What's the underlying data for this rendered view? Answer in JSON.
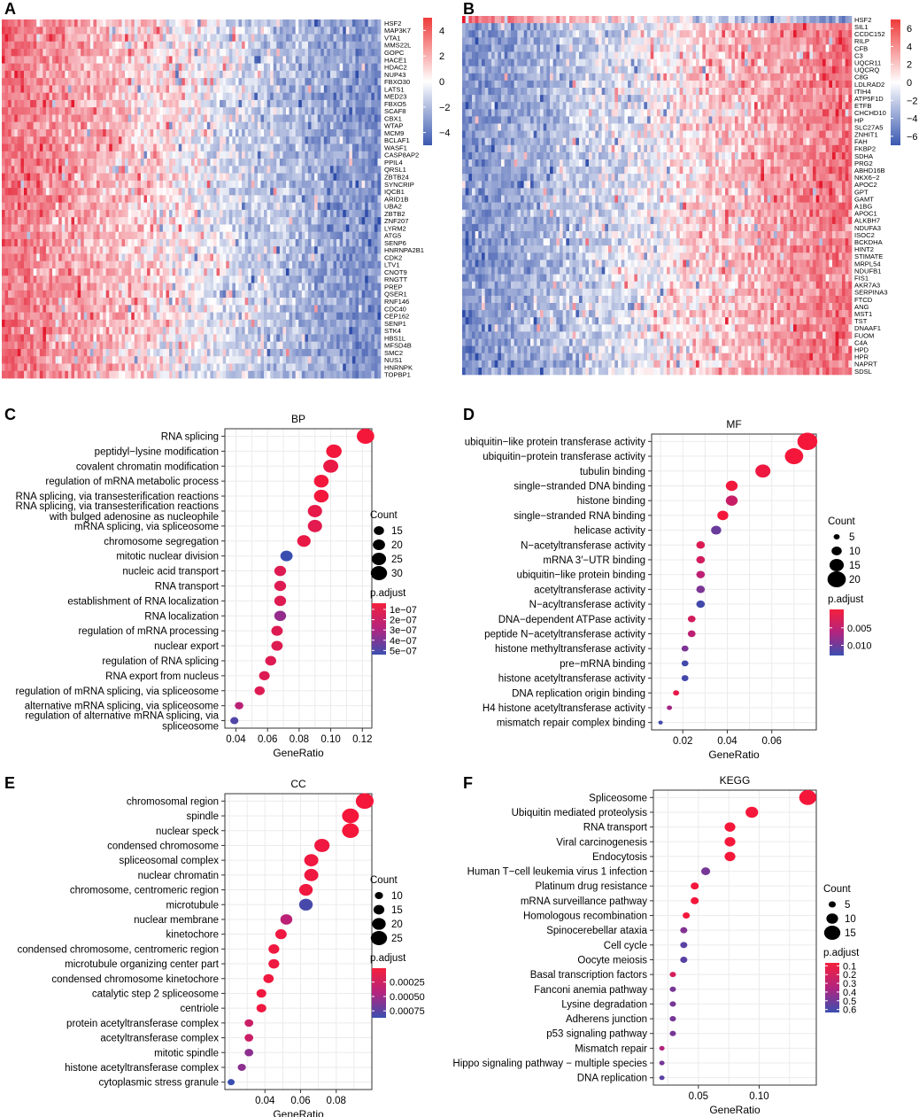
{
  "figure": {
    "panels": [
      "A",
      "B",
      "C",
      "D",
      "E",
      "F"
    ],
    "colors": {
      "red": "#e8112d",
      "mid": "#ffffff",
      "blue": "#2b4fa8",
      "grid": "#ebebeb",
      "gridMinor": "#f2f2f2",
      "text": "#000000",
      "axis": "#4d4d4d"
    }
  },
  "chart_data": [
    {
      "panel": "A",
      "type": "heatmap",
      "genes": [
        "HSF2",
        "MAP3K7",
        "VTA1",
        "MMS22L",
        "GOPC",
        "HACE1",
        "HDAC2",
        "NUP43",
        "FBXO30",
        "LATS1",
        "MED23",
        "FBXO5",
        "SCAF8",
        "CBX1",
        "WTAP",
        "MCM9",
        "BCLAF1",
        "WASF1",
        "CASP8AP2",
        "PPIL4",
        "QRSL1",
        "ZBTB24",
        "SYNCRIP",
        "IQCB1",
        "ARID1B",
        "UBA2",
        "ZBTB2",
        "ZNF207",
        "LYRM2",
        "ATG5",
        "SENP6",
        "HNRNPA2B1",
        "CDK2",
        "LTV1",
        "CNOT9",
        "RNGTT",
        "PREP",
        "QSER1",
        "RNF146",
        "CDC40",
        "CEP162",
        "SENP1",
        "STK4",
        "HBS1L",
        "MFSD4B",
        "SMC2",
        "NUS1",
        "HNRNPK",
        "TOPBP1"
      ],
      "legend_ticks": [
        "4",
        "2",
        "0",
        "−2",
        "−4"
      ],
      "color_range": [
        -5,
        5
      ],
      "pattern": "strong positive correlation: red on left, blue on right for all genes"
    },
    {
      "panel": "B",
      "type": "heatmap",
      "genes": [
        "HSF2",
        "SIL1",
        "CCDC152",
        "RILP",
        "CFB",
        "C3",
        "UQCR11",
        "UQCRQ",
        "C8G",
        "LDLRAD2",
        "ITIH4",
        "ATP5F1D",
        "ETFB",
        "CHCHD10",
        "HP",
        "SLC27A5",
        "ZNHIT1",
        "FAH",
        "FKBP2",
        "SDHA",
        "PRG2",
        "ABHD16B",
        "NKX6−2",
        "APOC2",
        "GPT",
        "GAMT",
        "A1BG",
        "APOC1",
        "ALKBH7",
        "NDUFA3",
        "ISOC2",
        "BCKDHA",
        "HINT2",
        "STIMATE",
        "MRPL54",
        "NDUFB1",
        "FIS1",
        "AKR7A3",
        "SERPINA3",
        "FTCD",
        "ANG",
        "MST1",
        "TST",
        "DNAAF1",
        "FUOM",
        "C4A",
        "HPD",
        "HPR",
        "NAPRT",
        "SDSL"
      ],
      "legend_ticks": [
        "6",
        "4",
        "2",
        "0",
        "−2",
        "−4",
        "−6"
      ],
      "color_range": [
        -7,
        7
      ],
      "pattern": "negative correlation: top row red-to-blue, other genes blue-to-red"
    },
    {
      "panel": "C",
      "type": "scatter",
      "title": "BP",
      "xlabel": "GeneRatio",
      "xlim": [
        0.033,
        0.126
      ],
      "xticks": [
        "0.04",
        "0.06",
        "0.08",
        "0.10",
        "0.12"
      ],
      "xtick_values": [
        0.04,
        0.06,
        0.08,
        0.1,
        0.12
      ],
      "terms": [
        "RNA splicing",
        "peptidyl−lysine modification",
        "covalent chromatin modification",
        "regulation of mRNA metabolic process",
        "RNA splicing, via transesterification reactions",
        "RNA splicing, via transesterification reactions with bulged adenosine as nucleophile",
        "mRNA splicing, via spliceosome",
        "chromosome segregation",
        "mitotic nuclear division",
        "nucleic acid transport",
        "RNA transport",
        "establishment of RNA localization",
        "RNA localization",
        "regulation of mRNA processing",
        "nuclear export",
        "regulation of RNA splicing",
        "RNA export from nucleus",
        "regulation of mRNA splicing, via spliceosome",
        "alternative mRNA splicing, via spliceosome",
        "regulation of alternative mRNA splicing, via spliceosome"
      ],
      "term_lines": [
        [
          "RNA splicing"
        ],
        [
          "peptidyl−lysine modification"
        ],
        [
          "covalent chromatin modification"
        ],
        [
          "regulation of mRNA metabolic process"
        ],
        [
          "RNA splicing, via transesterification reactions"
        ],
        [
          "RNA splicing, via transesterification reactions",
          "with bulged adenosine as nucleophile"
        ],
        [
          "mRNA splicing, via spliceosome"
        ],
        [
          "chromosome segregation"
        ],
        [
          "mitotic nuclear division"
        ],
        [
          "nucleic acid transport"
        ],
        [
          "RNA transport"
        ],
        [
          "establishment of RNA localization"
        ],
        [
          "RNA localization"
        ],
        [
          "regulation of mRNA processing"
        ],
        [
          "nuclear export"
        ],
        [
          "regulation of RNA splicing"
        ],
        [
          "RNA export from nucleus"
        ],
        [
          "regulation of mRNA splicing, via spliceosome"
        ],
        [
          "alternative mRNA splicing, via spliceosome"
        ],
        [
          "regulation of alternative mRNA splicing, via",
          "spliceosome"
        ]
      ],
      "x": [
        0.122,
        0.102,
        0.1,
        0.094,
        0.094,
        0.09,
        0.09,
        0.083,
        0.072,
        0.068,
        0.068,
        0.068,
        0.068,
        0.066,
        0.066,
        0.062,
        0.058,
        0.055,
        0.042,
        0.039
      ],
      "count": [
        33,
        28,
        27,
        26,
        26,
        25,
        25,
        23,
        20,
        19,
        19,
        19,
        19,
        18,
        18,
        17,
        16,
        15,
        11,
        10
      ],
      "p_adjust": [
        1e-09,
        1e-08,
        5e-08,
        1e-08,
        1e-08,
        6e-08,
        8e-08,
        5e-08,
        5.5e-07,
        1e-07,
        1e-07,
        1e-07,
        3.5e-07,
        1e-07,
        1e-07,
        1e-07,
        1e-07,
        1e-07,
        2.5e-07,
        5e-07
      ],
      "count_legend": {
        "title": "Count",
        "labels": [
          "15",
          "20",
          "25",
          "30"
        ],
        "values": [
          15,
          20,
          25,
          30
        ]
      },
      "color_legend": {
        "title": "p.adjust",
        "labels": [
          "1e−07",
          "2e−07",
          "3e−07",
          "4e−07",
          "5e−07"
        ],
        "range": [
          1e-09,
          5.7e-07
        ]
      }
    },
    {
      "panel": "D",
      "type": "scatter",
      "title": "MF",
      "xlabel": "GeneRatio",
      "xlim": [
        0.006,
        0.08
      ],
      "xticks": [
        "0.02",
        "0.04",
        "0.06"
      ],
      "xtick_values": [
        0.02,
        0.04,
        0.06
      ],
      "terms": [
        "ubiquitin−like protein transferase activity",
        "ubiquitin−protein transferase activity",
        "tubulin binding",
        "single−stranded DNA binding",
        "histone binding",
        "single−stranded RNA binding",
        "helicase activity",
        "N−acetyltransferase activity",
        "mRNA 3′−UTR binding",
        "ubiquitin−like protein binding",
        "acetyltransferase activity",
        "N−acyltransferase activity",
        "DNA−dependent ATPase activity",
        "peptide N−acetyltransferase activity",
        "histone methyltransferase activity",
        "pre−mRNA binding",
        "histone acetyltransferase activity",
        "DNA replication origin binding",
        "H4 histone acetyltransferase activity",
        "mismatch repair complex binding"
      ],
      "x": [
        0.076,
        0.07,
        0.056,
        0.042,
        0.042,
        0.038,
        0.035,
        0.028,
        0.028,
        0.028,
        0.028,
        0.028,
        0.024,
        0.024,
        0.021,
        0.021,
        0.021,
        0.017,
        0.014,
        0.01
      ],
      "count": [
        22,
        20,
        16,
        12,
        12,
        11,
        10,
        8,
        8,
        8,
        8,
        8,
        7,
        7,
        6,
        6,
        6,
        5,
        4,
        3
      ],
      "p_adjust": [
        0.0001,
        0.0001,
        0.0008,
        0.0005,
        0.0045,
        0.0001,
        0.0105,
        0.0025,
        0.0035,
        0.0055,
        0.0095,
        0.0125,
        0.0035,
        0.0055,
        0.0095,
        0.0125,
        0.0125,
        0.0015,
        0.0075,
        0.0125
      ],
      "count_legend": {
        "title": "Count",
        "labels": [
          "5",
          "10",
          "15",
          "20"
        ],
        "values": [
          5,
          10,
          15,
          20
        ]
      },
      "color_legend": {
        "title": "p.adjust",
        "labels": [
          "0.005",
          "0.010"
        ],
        "range": [
          0.0001,
          0.0135
        ]
      }
    },
    {
      "panel": "E",
      "type": "scatter",
      "title": "CC",
      "xlabel": "GeneRatio",
      "xlim": [
        0.0175,
        0.1
      ],
      "xticks": [
        "0.04",
        "0.06",
        "0.08"
      ],
      "xtick_values": [
        0.04,
        0.06,
        0.08
      ],
      "terms": [
        "chromosomal region",
        "spindle",
        "nuclear speck",
        "condensed chromosome",
        "spliceosomal complex",
        "nuclear chromatin",
        "chromosome, centromeric region",
        "microtubule",
        "nuclear membrane",
        "kinetochore",
        "condensed chromosome, centromeric region",
        "microtubule organizing center part",
        "condensed chromosome kinetochore",
        "catalytic step 2 spliceosome",
        "centriole",
        "protein acetyltransferase complex",
        "acetyltransferase complex",
        "mitotic spindle",
        "histone acetyltransferase complex",
        "cytoplasmic stress granule"
      ],
      "x": [
        0.096,
        0.088,
        0.088,
        0.072,
        0.066,
        0.066,
        0.063,
        0.063,
        0.052,
        0.049,
        0.045,
        0.045,
        0.042,
        0.038,
        0.038,
        0.031,
        0.031,
        0.031,
        0.027,
        0.021
      ],
      "count": [
        28,
        26,
        26,
        23,
        21,
        21,
        20,
        20,
        17,
        16,
        15,
        15,
        14,
        13,
        13,
        11,
        11,
        11,
        10,
        8
      ],
      "p_adjust": [
        1e-05,
        1e-05,
        1e-05,
        5e-05,
        5e-05,
        5e-05,
        5e-05,
        0.00085,
        0.0004,
        5e-05,
        5e-05,
        5e-05,
        5e-05,
        5e-05,
        5e-05,
        0.0003,
        0.0003,
        0.0006,
        0.0006,
        0.0009
      ],
      "count_legend": {
        "title": "Count",
        "labels": [
          "10",
          "15",
          "20",
          "25"
        ],
        "values": [
          10,
          15,
          20,
          25
        ]
      },
      "color_legend": {
        "title": "p.adjust",
        "labels": [
          "0.00025",
          "0.00050",
          "0.00075"
        ],
        "range": [
          1e-05,
          0.00093
        ]
      }
    },
    {
      "panel": "F",
      "type": "scatter",
      "title": "KEGG",
      "xlabel": "GeneRatio",
      "xlim": [
        0.013,
        0.147
      ],
      "xticks": [
        "0.05",
        "0.10"
      ],
      "xtick_values": [
        0.05,
        0.1
      ],
      "terms": [
        "Spliceosome",
        "Ubiquitin mediated proteolysis",
        "RNA transport",
        "Viral carcinogenesis",
        "Endocytosis",
        "Human T−cell leukemia virus 1 infection",
        "Platinum drug resistance",
        "mRNA surveillance pathway",
        "Homologous recombination",
        "Spinocerebellar ataxia",
        "Cell cycle",
        "Oocyte meiosis",
        "Basal transcription factors",
        "Fanconi anemia pathway",
        "Lysine degradation",
        "Adherens junction",
        "p53 signaling pathway",
        "Mismatch repair",
        "Hippo signaling pathway − multiple species",
        "DNA replication"
      ],
      "x": [
        0.14,
        0.094,
        0.076,
        0.076,
        0.076,
        0.056,
        0.047,
        0.047,
        0.04,
        0.038,
        0.038,
        0.038,
        0.029,
        0.029,
        0.029,
        0.029,
        0.029,
        0.02,
        0.02,
        0.02
      ],
      "count": [
        16,
        11,
        9,
        9,
        9,
        7,
        6,
        6,
        5,
        5,
        5,
        5,
        4,
        4,
        4,
        4,
        4,
        3,
        3,
        3
      ],
      "p_adjust": [
        0.001,
        0.001,
        0.001,
        0.001,
        0.001,
        0.45,
        0.01,
        0.01,
        0.01,
        0.42,
        0.52,
        0.52,
        0.15,
        0.45,
        0.45,
        0.45,
        0.45,
        0.3,
        0.45,
        0.52
      ],
      "count_legend": {
        "title": "Count",
        "labels": [
          "5",
          "10",
          "15"
        ],
        "values": [
          5,
          10,
          15
        ]
      },
      "color_legend": {
        "title": "p.adjust",
        "labels": [
          "0.1",
          "0.2",
          "0.3",
          "0.4",
          "0.5",
          "0.6"
        ],
        "range": [
          0.001,
          0.62
        ]
      }
    }
  ]
}
